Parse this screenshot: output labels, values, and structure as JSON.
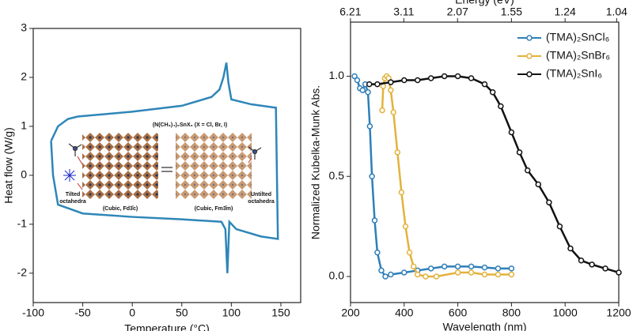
{
  "chart_data": [
    {
      "type": "line",
      "xlabel": "Temperature (°C)",
      "ylabel": "Heat flow (W/g)",
      "xlim": [
        -100,
        170
      ],
      "ylim": [
        -2.6,
        3
      ],
      "xticks": [
        -100,
        -50,
        0,
        50,
        100,
        150
      ],
      "yticks": [
        -2,
        -1,
        0,
        1,
        2,
        3
      ],
      "series": [
        {
          "color": "#2e86b8",
          "x": [
            -82,
            -75,
            -65,
            -55,
            0,
            50,
            80,
            88,
            92,
            95,
            97,
            100,
            120,
            145,
            147,
            130,
            105,
            98,
            96,
            94,
            90,
            50,
            0,
            -50,
            -75,
            -80,
            -82
          ],
          "values": [
            0.7,
            1.0,
            1.15,
            1.2,
            1.3,
            1.42,
            1.6,
            1.75,
            2.0,
            2.3,
            1.9,
            1.55,
            1.45,
            1.38,
            -1.3,
            -1.25,
            -1.1,
            -0.95,
            -2.0,
            -1.1,
            -0.95,
            -0.9,
            -0.85,
            -0.78,
            -0.6,
            0.0,
            0.7
          ]
        }
      ],
      "annotations": [
        "(N(CH₃)₄)₂SnX₆ (X = Cl, Br, I)",
        "Tilted",
        "octahedra",
        "(Cubic, Fd3̄c)",
        "(Cubic, Fm3̄m)",
        "Untilted",
        "octahedra"
      ]
    },
    {
      "type": "line",
      "xlabel": "Wavelength (nm)",
      "ylabel": "Normalized Kubelka-Munk Abs.",
      "x2label": "Energy (eV)",
      "xlim": [
        200,
        1200
      ],
      "ylim": [
        -0.13,
        1.27
      ],
      "xticks": [
        200,
        400,
        600,
        800,
        1000,
        1200
      ],
      "yticks": [
        {
          "value": 0,
          "label": "0.0"
        },
        {
          "value": 0.5,
          "label": "0.5"
        },
        {
          "value": 1,
          "label": "1.0"
        }
      ],
      "x2ticks": [
        6.21,
        3.11,
        2.07,
        1.55,
        1.24,
        1.04
      ],
      "legend": "upper right",
      "series": [
        {
          "name": "(TMA)₂SnCl₆",
          "color": "#2e7fb8",
          "x": [
            215,
            225,
            235,
            245,
            255,
            265,
            272,
            280,
            290,
            300,
            315,
            330,
            350,
            400,
            450,
            500,
            550,
            600,
            650,
            700,
            750,
            800
          ],
          "values": [
            1.0,
            0.98,
            0.94,
            0.93,
            0.96,
            0.92,
            0.75,
            0.5,
            0.28,
            0.12,
            0.03,
            0.0,
            0.01,
            0.02,
            0.03,
            0.04,
            0.05,
            0.05,
            0.05,
            0.045,
            0.04,
            0.04
          ]
        },
        {
          "name": "(TMA)₂SnBr₆",
          "color": "#e3b23c",
          "x": [
            318,
            322,
            328,
            335,
            342,
            350,
            360,
            375,
            390,
            405,
            420,
            435,
            450,
            480,
            520,
            600,
            650,
            700,
            750,
            800
          ],
          "values": [
            0.83,
            0.95,
            0.99,
            1.0,
            0.99,
            0.93,
            0.82,
            0.62,
            0.42,
            0.25,
            0.12,
            0.05,
            0.01,
            0.0,
            0.0,
            0.02,
            0.02,
            0.01,
            0.01,
            0.01
          ]
        },
        {
          "name": "(TMA)₂SnI₆",
          "color": "#111111",
          "x": [
            270,
            300,
            350,
            400,
            450,
            500,
            550,
            600,
            650,
            700,
            730,
            760,
            800,
            830,
            860,
            900,
            940,
            980,
            1020,
            1060,
            1100,
            1150,
            1200
          ],
          "values": [
            0.96,
            0.96,
            0.97,
            0.98,
            0.98,
            0.99,
            1.0,
            1.0,
            0.99,
            0.96,
            0.92,
            0.85,
            0.72,
            0.62,
            0.53,
            0.46,
            0.37,
            0.25,
            0.14,
            0.08,
            0.06,
            0.04,
            0.02
          ]
        }
      ]
    }
  ]
}
